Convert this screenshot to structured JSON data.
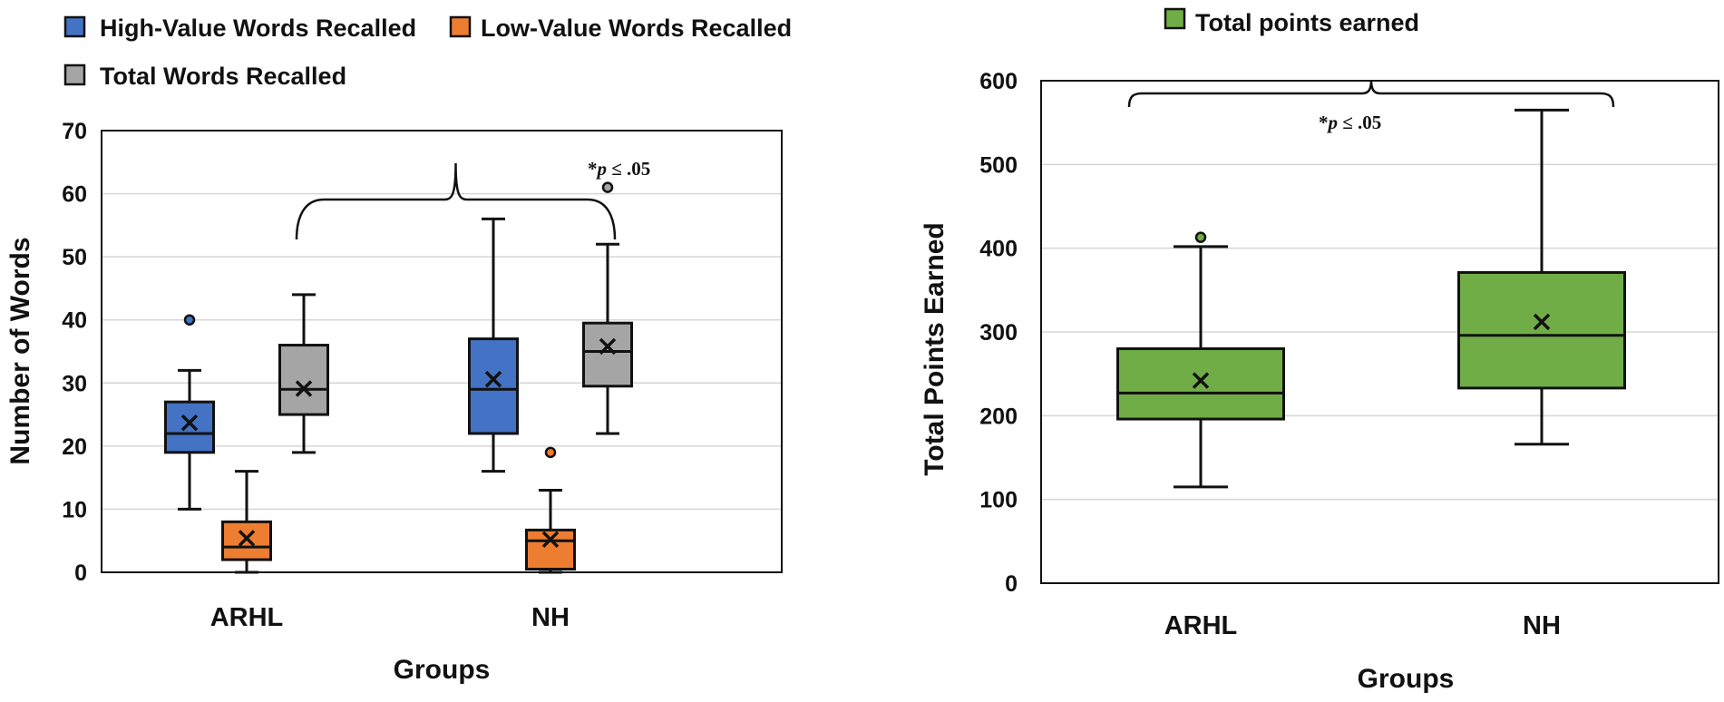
{
  "chart_data": [
    {
      "type": "box",
      "xlabel": "Groups",
      "ylabel": "Number of Words",
      "ylim": [
        0,
        70
      ],
      "yticks": [
        0,
        10,
        20,
        30,
        40,
        50,
        60,
        70
      ],
      "categories": [
        "ARHL",
        "NH"
      ],
      "grid": "horizontal",
      "legend_position": "top-left",
      "series": [
        {
          "name": "High-Value Words Recalled",
          "color": "#4472C4",
          "boxes": [
            {
              "min": 10,
              "q1": 19,
              "median": 22,
              "q3": 27,
              "max": 32,
              "mean": 23.7,
              "outliers": [
                40
              ]
            },
            {
              "min": 16,
              "q1": 22,
              "median": 29,
              "q3": 37,
              "max": 56,
              "mean": 30.6,
              "outliers": []
            }
          ]
        },
        {
          "name": "Low-Value Words Recalled",
          "color": "#ED7D31",
          "boxes": [
            {
              "min": 0,
              "q1": 2,
              "median": 4,
              "q3": 8,
              "max": 16,
              "mean": 5.4,
              "outliers": []
            },
            {
              "min": 0,
              "q1": 0.5,
              "median": 5,
              "q3": 6.7,
              "max": 13,
              "mean": 5.2,
              "outliers": [
                19
              ]
            }
          ]
        },
        {
          "name": "Total Words Recalled",
          "color": "#A5A5A5",
          "boxes": [
            {
              "min": 19,
              "q1": 25,
              "median": 29,
              "q3": 36,
              "max": 44,
              "mean": 29.1,
              "outliers": []
            },
            {
              "min": 22,
              "q1": 29.5,
              "median": 35,
              "q3": 39.5,
              "max": 52,
              "mean": 35.8,
              "outliers": [
                61
              ]
            }
          ]
        }
      ],
      "annotation": {
        "prefix": "*",
        "italic": "p",
        "suffix": " ≤ .05",
        "compares": [
          "Total Words Recalled: ARHL",
          "Total Words Recalled: NH"
        ]
      }
    },
    {
      "type": "box",
      "xlabel": "Groups",
      "ylabel": "Total Points Earned",
      "ylim": [
        0,
        600
      ],
      "yticks": [
        0,
        100,
        200,
        300,
        400,
        500,
        600
      ],
      "categories": [
        "ARHL",
        "NH"
      ],
      "grid": "horizontal",
      "legend_position": "top",
      "series": [
        {
          "name": "Total points earned",
          "color": "#70AD47",
          "boxes": [
            {
              "min": 115,
              "q1": 196,
              "median": 227,
              "q3": 280,
              "max": 402,
              "mean": 242,
              "outliers": [
                413
              ]
            },
            {
              "min": 166,
              "q1": 233,
              "median": 296,
              "q3": 371,
              "max": 565,
              "mean": 312,
              "outliers": []
            }
          ]
        }
      ],
      "annotation": {
        "prefix": "*",
        "italic": "p",
        "suffix": " ≤ .05",
        "compares": [
          "ARHL",
          "NH"
        ]
      }
    }
  ]
}
